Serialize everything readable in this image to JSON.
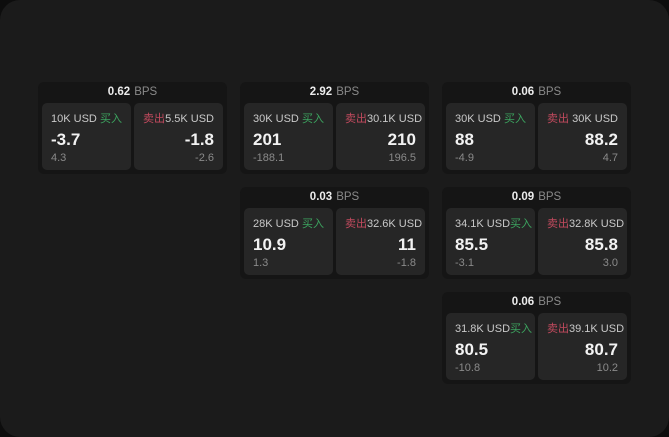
{
  "window": {
    "outer_bg": "#0d0d0d",
    "surface_bg": "#1b1b1b"
  },
  "colors": {
    "card_bg": "#151515",
    "panel_bg": "#262626",
    "buy_green": "#3ca45f",
    "sell_red": "#c24a5e",
    "value_white": "#f2f2f2",
    "muted_gray": "#8a8a8a",
    "label_gray": "#c9c9c9"
  },
  "labels": {
    "bps_unit": "BPS",
    "buy": "买入",
    "sell": "卖出"
  },
  "cards": [
    {
      "bps": "0.62",
      "grid": {
        "row": 1,
        "col": 1
      },
      "buy": {
        "amount": "10K USD",
        "value": "-3.7",
        "delta": "4.3"
      },
      "sell": {
        "amount": "5.5K USD",
        "value": "-1.8",
        "delta": "-2.6"
      }
    },
    {
      "bps": "2.92",
      "grid": {
        "row": 1,
        "col": 2
      },
      "buy": {
        "amount": "30K USD",
        "value": "201",
        "delta": "-188.1"
      },
      "sell": {
        "amount": "30.1K USD",
        "value": "210",
        "delta": "196.5"
      }
    },
    {
      "bps": "0.06",
      "grid": {
        "row": 1,
        "col": 3
      },
      "buy": {
        "amount": "30K USD",
        "value": "88",
        "delta": "-4.9"
      },
      "sell": {
        "amount": "30K USD",
        "value": "88.2",
        "delta": "4.7"
      }
    },
    {
      "bps": "0.03",
      "grid": {
        "row": 2,
        "col": 2
      },
      "buy": {
        "amount": "28K USD",
        "value": "10.9",
        "delta": "1.3"
      },
      "sell": {
        "amount": "32.6K USD",
        "value": "11",
        "delta": "-1.8"
      }
    },
    {
      "bps": "0.09",
      "grid": {
        "row": 2,
        "col": 3
      },
      "buy": {
        "amount": "34.1K USD",
        "value": "85.5",
        "delta": "-3.1"
      },
      "sell": {
        "amount": "32.8K USD",
        "value": "85.8",
        "delta": "3.0"
      }
    },
    {
      "bps": "0.06",
      "grid": {
        "row": 3,
        "col": 3
      },
      "buy": {
        "amount": "31.8K USD",
        "value": "80.5",
        "delta": "-10.8"
      },
      "sell": {
        "amount": "39.1K USD",
        "value": "80.7",
        "delta": "10.2"
      }
    }
  ]
}
